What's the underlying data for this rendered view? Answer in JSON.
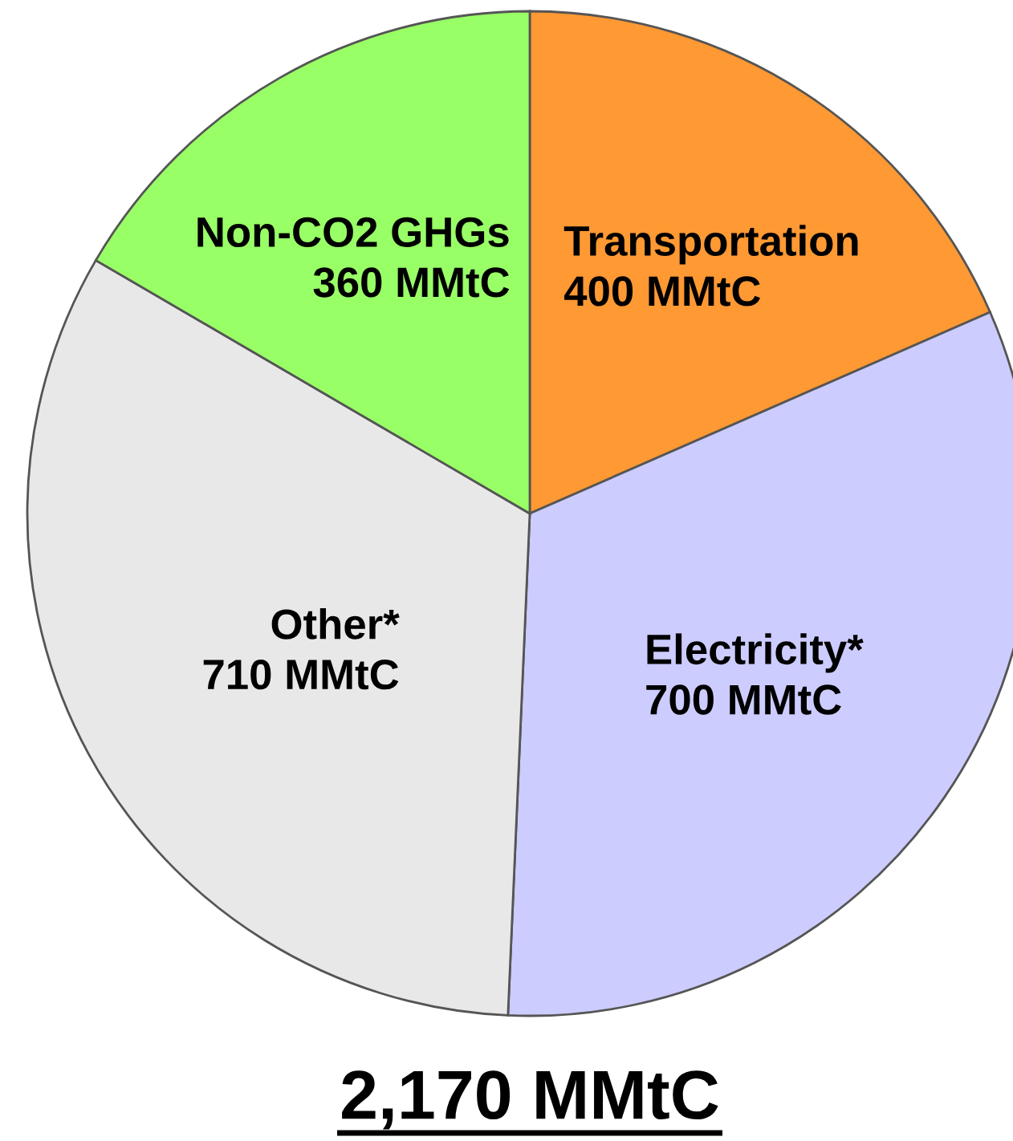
{
  "chart_data": {
    "type": "pie",
    "title": "2,170 MMtC",
    "categories": [
      "Transportation",
      "Electricity*",
      "Other*",
      "Non-CO2 GHGs"
    ],
    "values": [
      400,
      700,
      710,
      360
    ],
    "value_labels": [
      "400 MMtC",
      "700 MMtC",
      "710 MMtC",
      "360 MMtC"
    ],
    "colors": [
      "#ff9933",
      "#ccccff",
      "#e8e8e8",
      "#99ff66"
    ]
  }
}
